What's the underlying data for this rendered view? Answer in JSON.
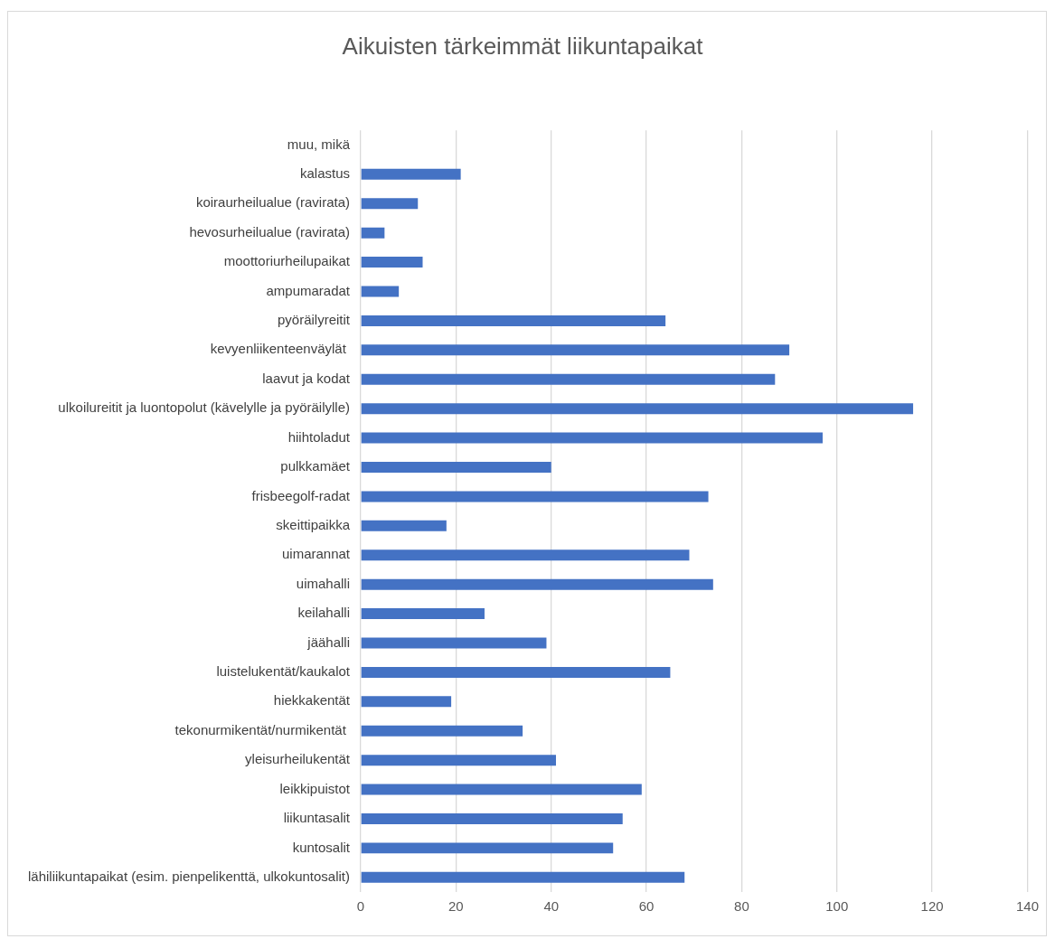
{
  "chart_data": {
    "type": "bar",
    "orientation": "horizontal",
    "title": "Aikuisten tärkeimmät liikuntapaikat",
    "categories": [
      "muu, mikä",
      "kalastus",
      "koiraurheilualue (ravirata)",
      "hevosurheilualue (ravirata)",
      "moottoriurheilupaikat",
      "ampumaradat",
      "pyöräilyreitit",
      "kevyenliikenteenväylät ",
      "laavut ja kodat",
      "ulkoilureitit ja luontopolut (kävelylle ja pyöräilylle)",
      "hiihtoladut",
      "pulkkamäet",
      "frisbeegolf-radat",
      "skeittipaikka",
      "uimarannat",
      "uimahalli",
      "keilahalli",
      "jäähalli",
      "luistelukentät/kaukalot",
      "hiekkakentät",
      "tekonurmikentät/nurmikentät ",
      "yleisurheilukentät",
      "leikkipuistot",
      "liikuntasalit",
      "kuntosalit",
      "lähiliikuntapaikat (esim. pienpelikenttä, ulkokuntosalit)"
    ],
    "values": [
      0,
      21,
      12,
      5,
      13,
      8,
      64,
      90,
      87,
      116,
      97,
      40,
      73,
      18,
      69,
      74,
      26,
      39,
      65,
      19,
      34,
      41,
      59,
      55,
      53,
      68
    ],
    "color": "#4472c4",
    "xlim": [
      0,
      140
    ],
    "xticks": [
      0,
      20,
      40,
      60,
      80,
      100,
      120,
      140
    ],
    "grid": "x"
  }
}
